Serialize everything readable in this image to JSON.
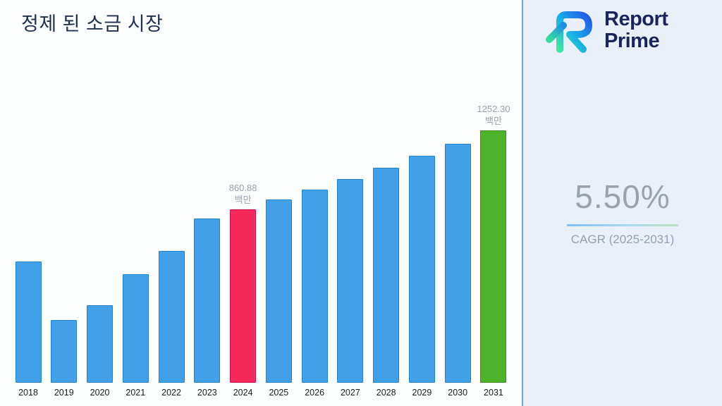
{
  "page": {
    "title": "정제 된 소금 시장",
    "brand": {
      "name_line1": "Report",
      "name_line2": "Prime"
    },
    "cagr": {
      "value": "5.50%",
      "label": "CAGR (2025-2031)"
    }
  },
  "chart_data": {
    "type": "bar",
    "title": "정제 된 소금 시장",
    "unit": "백만",
    "categories": [
      "2018",
      "2019",
      "2020",
      "2021",
      "2022",
      "2023",
      "2024",
      "2025",
      "2026",
      "2027",
      "2028",
      "2029",
      "2030",
      "2031"
    ],
    "values": [
      600,
      310,
      385,
      540,
      655,
      815,
      860.88,
      908.23,
      958.18,
      1010.88,
      1066.48,
      1125.14,
      1187.02,
      1252.3
    ],
    "labeled_values": {
      "2024": "860.88",
      "2031": "1252.30"
    },
    "bar_colors": {
      "default": {
        "fill": "#41a0e8",
        "border": "#1f85d3"
      },
      "2024": {
        "fill": "#f6295d",
        "border": "#d6124b"
      },
      "2031": {
        "fill": "#4fb32b",
        "border": "#3b9317"
      }
    },
    "ylim": [
      0,
      1300
    ],
    "grid": false,
    "legend": "none",
    "xlabel": "",
    "ylabel": ""
  }
}
